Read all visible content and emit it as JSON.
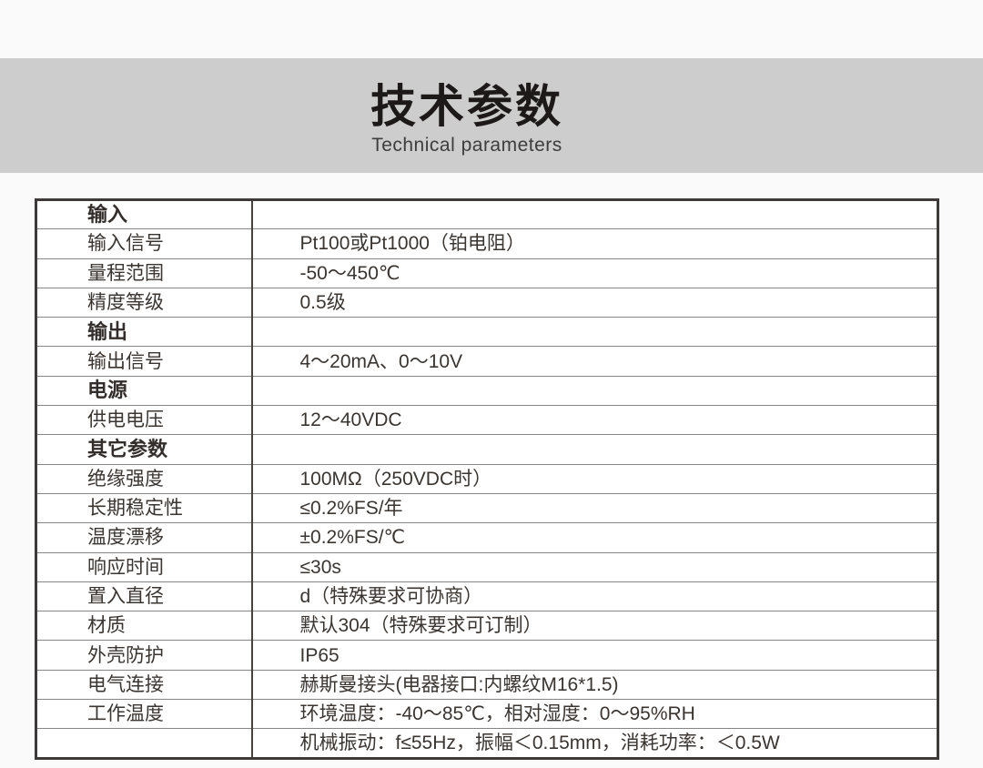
{
  "header": {
    "title_cn": "技术参数",
    "title_en": "Technical parameters"
  },
  "table": {
    "rows": [
      {
        "label": "输入",
        "value": "",
        "section": true
      },
      {
        "label": "输入信号",
        "value": "Pt100或Pt1000（铂电阻）",
        "section": false
      },
      {
        "label": "量程范围",
        "value": "-50～450℃",
        "section": false
      },
      {
        "label": "精度等级",
        "value": "0.5级",
        "section": false
      },
      {
        "label": "输出",
        "value": "",
        "section": true
      },
      {
        "label": "输出信号",
        "value": "4～20mA、0～10V",
        "section": false
      },
      {
        "label": "电源",
        "value": "",
        "section": true
      },
      {
        "label": "供电电压",
        "value": "12～40VDC",
        "section": false
      },
      {
        "label": "其它参数",
        "value": "",
        "section": true
      },
      {
        "label": "绝缘强度",
        "value": "100MΩ（250VDC时）",
        "section": false
      },
      {
        "label": "长期稳定性",
        "value": "≤0.2%FS/年",
        "section": false
      },
      {
        "label": "温度漂移",
        "value": "±0.2%FS/℃",
        "section": false
      },
      {
        "label": "响应时间",
        "value": "≤30s",
        "section": false
      },
      {
        "label": "置入直径",
        "value": "d（特殊要求可协商）",
        "section": false
      },
      {
        "label": "材质",
        "value": "默认304（特殊要求可订制）",
        "section": false
      },
      {
        "label": "外壳防护",
        "value": "IP65",
        "section": false
      },
      {
        "label": "电气连接",
        "value": "赫斯曼接头(电器接口:内螺纹M16*1.5)",
        "section": false
      },
      {
        "label": "工作温度",
        "value": "环境温度：-40～85℃，相对湿度：0～95%RH",
        "section": false
      },
      {
        "label": "",
        "value": "机械振动：f≤55Hz，振幅＜0.15mm，消耗功率：＜0.5W",
        "section": false
      }
    ]
  },
  "colors": {
    "page_background": "#fafafa",
    "banner_background": "#cdcdcd",
    "title_text": "#1d1918",
    "subtitle_text": "#3d3d3d",
    "table_text": "#3b3531",
    "table_outer_border": "#3e3a39",
    "table_inner_line": "#858585",
    "table_column_divider": "#48423e"
  }
}
